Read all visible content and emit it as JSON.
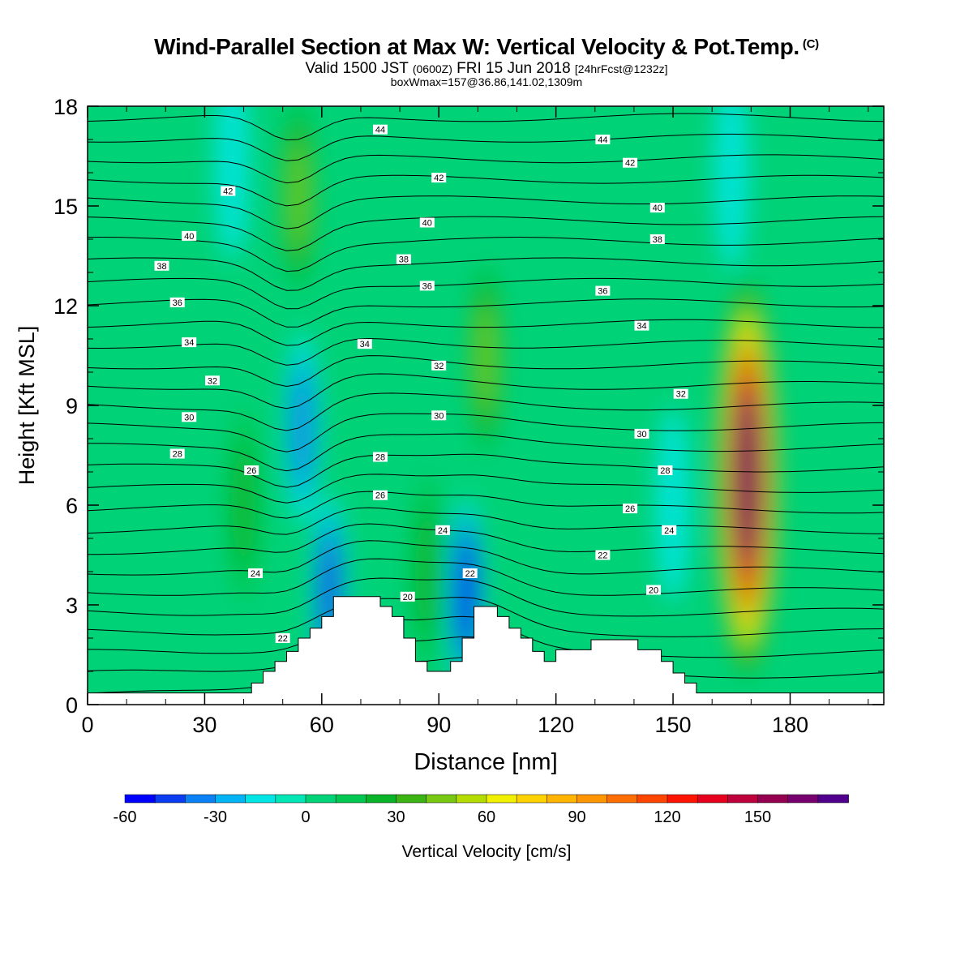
{
  "header": {
    "title": "Wind-Parallel Section at Max W: Vertical Velocity & Pot.Temp.",
    "title_mark": "(C)",
    "valid_prefix": "Valid 1500 JST",
    "valid_utc": "(0600Z)",
    "valid_date": "FRI 15 Jun 2018",
    "forecast_tag": "[24hrFcst@1232z]",
    "box_info": "boxWmax=157@36.86,141.02,1309m"
  },
  "chart_data": {
    "type": "heatmap",
    "title": "Wind-Parallel Section at Max W: Vertical Velocity & Pot.Temp.",
    "xlabel": "Distance [nm]",
    "ylabel": "Height [Kft MSL]",
    "xlim": [
      0,
      204
    ],
    "ylim": [
      0,
      18
    ],
    "x_ticks": [
      0,
      30,
      60,
      90,
      120,
      150,
      180
    ],
    "y_ticks": [
      0,
      3,
      6,
      9,
      12,
      15,
      18
    ],
    "grid": false,
    "colorbar": {
      "label": "Vertical Velocity [cm/s]",
      "tick_values": [
        -60,
        -30,
        0,
        30,
        60,
        90,
        120,
        150
      ],
      "levels": [
        -60,
        -50,
        -40,
        -30,
        -20,
        -10,
        0,
        10,
        20,
        30,
        40,
        50,
        60,
        70,
        80,
        90,
        100,
        110,
        120,
        130,
        140,
        150,
        160,
        170
      ],
      "colors": [
        "#0000ff",
        "#0a3cf0",
        "#0a82f5",
        "#00b4f5",
        "#00e6e6",
        "#00e6b4",
        "#00d278",
        "#00c850",
        "#0ab428",
        "#3cb414",
        "#78c814",
        "#b4dc00",
        "#f0f000",
        "#ffd200",
        "#ffb400",
        "#ff9600",
        "#ff6e00",
        "#ff4600",
        "#ff1400",
        "#e6001e",
        "#be003c",
        "#960050",
        "#78006e",
        "#50008c"
      ]
    },
    "terrain_profile": {
      "x": [
        0,
        42,
        42,
        45,
        45,
        48,
        48,
        51,
        51,
        54,
        54,
        57,
        57,
        60,
        60,
        63,
        63,
        75,
        75,
        78,
        78,
        81,
        81,
        84,
        84,
        87,
        87,
        93,
        93,
        96,
        96,
        99,
        99,
        105,
        105,
        108,
        108,
        111,
        111,
        114,
        114,
        117,
        117,
        120,
        120,
        129,
        129,
        141,
        141,
        147,
        147,
        150,
        150,
        153,
        153,
        156,
        156,
        204
      ],
      "y": [
        0.35,
        0.35,
        0.65,
        0.65,
        1.0,
        1.0,
        1.3,
        1.3,
        1.6,
        1.6,
        2.0,
        2.0,
        2.3,
        2.3,
        2.65,
        2.65,
        3.25,
        3.25,
        2.95,
        2.95,
        2.65,
        2.65,
        2.0,
        2.0,
        1.3,
        1.3,
        1.0,
        1.0,
        1.3,
        1.3,
        2.0,
        2.0,
        2.95,
        2.95,
        2.65,
        2.65,
        2.3,
        2.3,
        2.0,
        2.0,
        1.6,
        1.6,
        1.3,
        1.3,
        1.65,
        1.65,
        1.95,
        1.95,
        1.65,
        1.65,
        1.3,
        1.3,
        0.95,
        0.95,
        0.65,
        0.65,
        0.35,
        0.35
      ]
    },
    "velocity_features": [
      {
        "x": 169,
        "y": 6.8,
        "value": 157
      },
      {
        "x": 62,
        "y": 3.4,
        "value": -40
      },
      {
        "x": 97,
        "y": 3.3,
        "value": -50
      },
      {
        "x": 55,
        "y": 8.3,
        "value": -30
      },
      {
        "x": 37,
        "y": 16.3,
        "value": -15
      },
      {
        "x": 54,
        "y": 15.3,
        "value": 40
      },
      {
        "x": 102,
        "y": 10.4,
        "value": 40
      },
      {
        "x": 40,
        "y": 6.0,
        "value": 25
      },
      {
        "x": 87,
        "y": 4.0,
        "value": 25
      },
      {
        "x": 165,
        "y": 16.0,
        "value": -15
      },
      {
        "x": 150,
        "y": 6.0,
        "value": -12
      }
    ],
    "theta_contour_labels": [
      {
        "x": 75,
        "y": 17.3,
        "text": "44"
      },
      {
        "x": 132,
        "y": 17.0,
        "text": "44"
      },
      {
        "x": 36,
        "y": 15.45,
        "text": "42"
      },
      {
        "x": 90,
        "y": 15.85,
        "text": "42"
      },
      {
        "x": 139,
        "y": 16.3,
        "text": "42"
      },
      {
        "x": 26,
        "y": 14.1,
        "text": "40"
      },
      {
        "x": 87,
        "y": 14.5,
        "text": "40"
      },
      {
        "x": 146,
        "y": 14.95,
        "text": "40"
      },
      {
        "x": 19,
        "y": 13.2,
        "text": "38"
      },
      {
        "x": 81,
        "y": 13.4,
        "text": "38"
      },
      {
        "x": 146,
        "y": 14.0,
        "text": "38"
      },
      {
        "x": 23,
        "y": 12.1,
        "text": "36"
      },
      {
        "x": 87,
        "y": 12.6,
        "text": "36"
      },
      {
        "x": 132,
        "y": 12.45,
        "text": "36"
      },
      {
        "x": 26,
        "y": 10.9,
        "text": "34"
      },
      {
        "x": 71,
        "y": 10.85,
        "text": "34"
      },
      {
        "x": 142,
        "y": 11.4,
        "text": "34"
      },
      {
        "x": 32,
        "y": 9.75,
        "text": "32"
      },
      {
        "x": 90,
        "y": 10.2,
        "text": "32"
      },
      {
        "x": 152,
        "y": 9.35,
        "text": "32"
      },
      {
        "x": 26,
        "y": 8.65,
        "text": "30"
      },
      {
        "x": 90,
        "y": 8.7,
        "text": "30"
      },
      {
        "x": 142,
        "y": 8.15,
        "text": "30"
      },
      {
        "x": 23,
        "y": 7.55,
        "text": "28"
      },
      {
        "x": 75,
        "y": 7.45,
        "text": "28"
      },
      {
        "x": 148,
        "y": 7.05,
        "text": "28"
      },
      {
        "x": 42,
        "y": 7.05,
        "text": "26"
      },
      {
        "x": 75,
        "y": 6.3,
        "text": "26"
      },
      {
        "x": 139,
        "y": 5.9,
        "text": "26"
      },
      {
        "x": 91,
        "y": 5.25,
        "text": "24"
      },
      {
        "x": 149,
        "y": 5.25,
        "text": "24"
      },
      {
        "x": 43,
        "y": 3.95,
        "text": "24"
      },
      {
        "x": 98,
        "y": 3.95,
        "text": "22"
      },
      {
        "x": 132,
        "y": 4.5,
        "text": "22"
      },
      {
        "x": 50,
        "y": 2.0,
        "text": "22"
      },
      {
        "x": 82,
        "y": 3.25,
        "text": "20"
      },
      {
        "x": 145,
        "y": 3.45,
        "text": "20"
      }
    ]
  }
}
